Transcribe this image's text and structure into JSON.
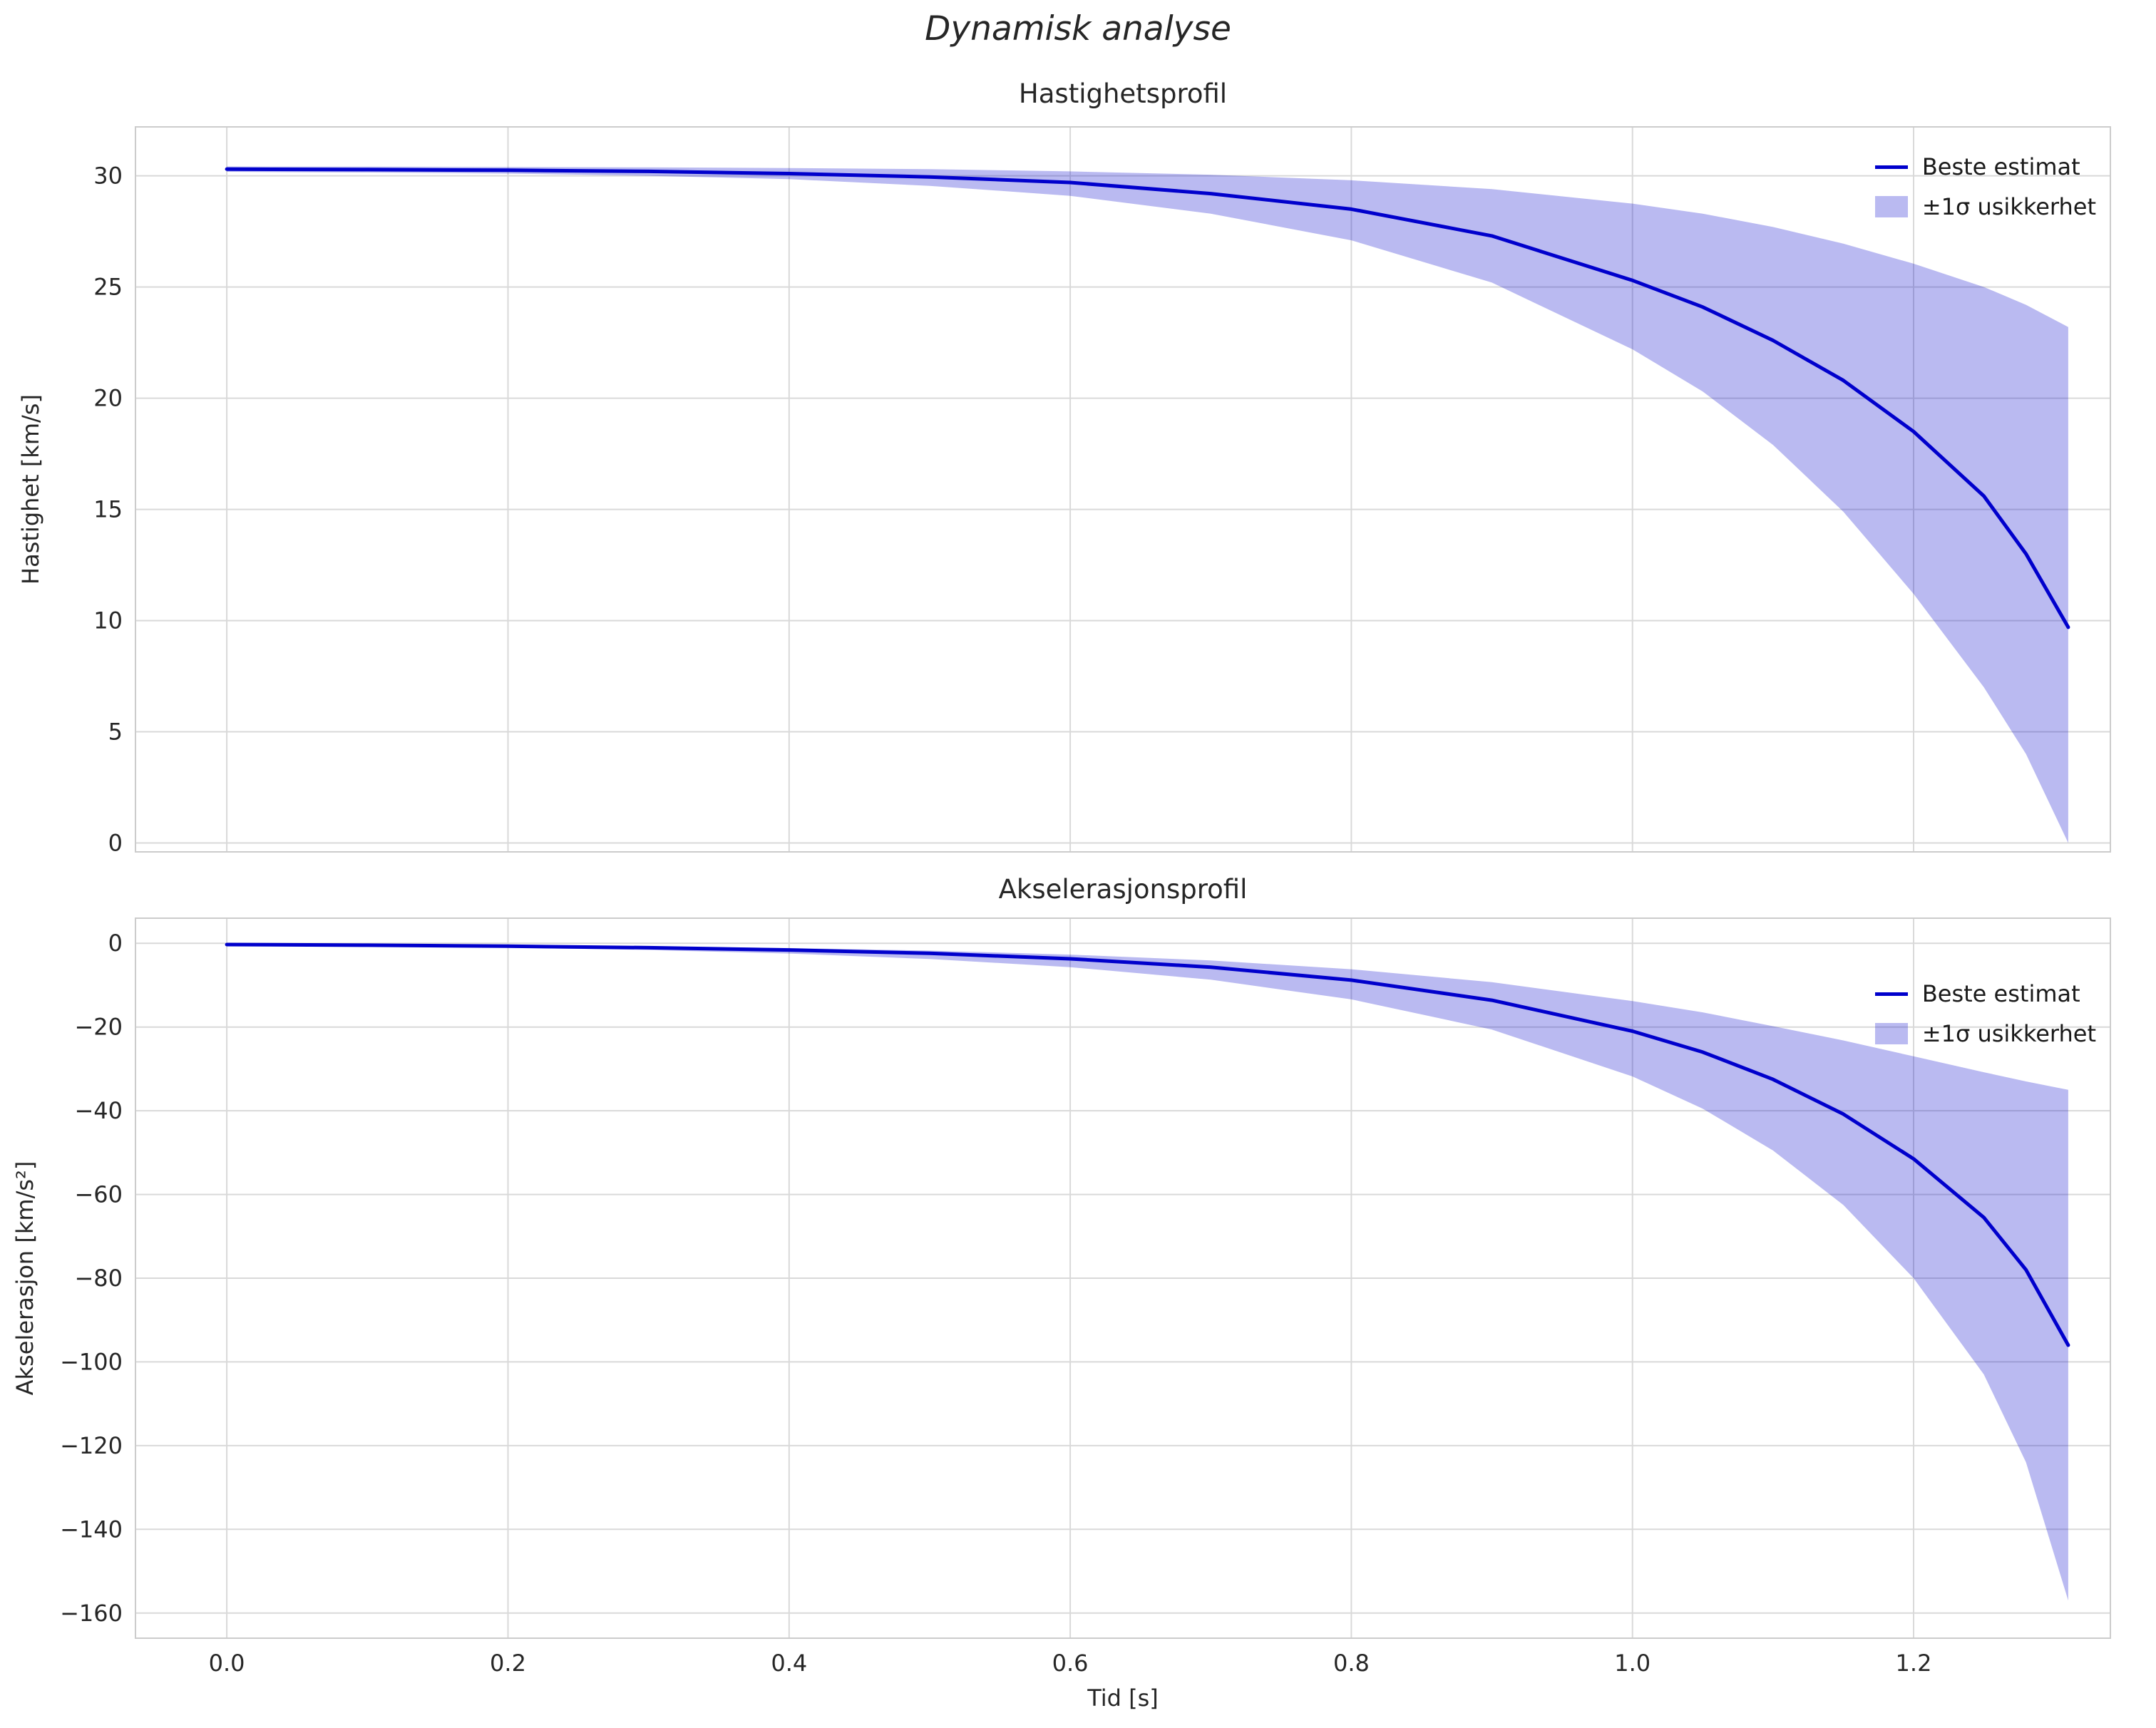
{
  "figure": {
    "suptitle": "Dynamisk analyse",
    "xlabel": "Tid [s]"
  },
  "chart_data": [
    {
      "type": "line",
      "title": "Hastighetsprofil",
      "ylabel": "Hastighet [km/s]",
      "legend": [
        "Beste estimat",
        "±1σ usikkerhet"
      ],
      "legend_position": "upper right",
      "grid": true,
      "colors": {
        "line": "#0000cc",
        "band": "rgba(0,0,204,0.27)"
      },
      "xlim": [
        -0.065,
        1.34
      ],
      "ylim": [
        -0.4,
        32.2
      ],
      "xticks": [
        0.0,
        0.2,
        0.4,
        0.6,
        0.8,
        1.0,
        1.2
      ],
      "yticks": [
        0,
        5,
        10,
        15,
        20,
        25,
        30
      ],
      "x": [
        0,
        0.1,
        0.2,
        0.3,
        0.4,
        0.5,
        0.6,
        0.7,
        0.8,
        0.9,
        1.0,
        1.05,
        1.1,
        1.15,
        1.2,
        1.25,
        1.28,
        1.31
      ],
      "best": [
        30.3,
        30.28,
        30.25,
        30.2,
        30.1,
        29.95,
        29.7,
        29.2,
        28.5,
        27.3,
        25.3,
        24.1,
        22.6,
        20.8,
        18.5,
        15.6,
        13.0,
        9.7
      ],
      "upper": [
        30.42,
        30.41,
        30.4,
        30.38,
        30.35,
        30.3,
        30.2,
        30.05,
        29.8,
        29.4,
        28.75,
        28.3,
        27.7,
        26.95,
        26.05,
        25.0,
        24.2,
        23.2
      ],
      "lower": [
        30.18,
        30.15,
        30.1,
        30.0,
        29.85,
        29.55,
        29.1,
        28.3,
        27.1,
        25.2,
        22.2,
        20.3,
        17.9,
        14.9,
        11.2,
        7.0,
        4.0,
        0.0
      ]
    },
    {
      "type": "line",
      "title": "Akselerasjonsprofil",
      "ylabel": "Akselerasjon [km/s²]",
      "legend": [
        "Beste estimat",
        "±1σ usikkerhet"
      ],
      "legend_position": "upper right",
      "grid": true,
      "colors": {
        "line": "#0000cc",
        "band": "rgba(0,0,204,0.27)"
      },
      "xlim": [
        -0.065,
        1.34
      ],
      "ylim": [
        -166,
        6
      ],
      "xticks": [
        0.0,
        0.2,
        0.4,
        0.6,
        0.8,
        1.0,
        1.2
      ],
      "yticks": [
        0,
        -20,
        -40,
        -60,
        -80,
        -100,
        -120,
        -140,
        -160
      ],
      "x": [
        0,
        0.1,
        0.2,
        0.3,
        0.4,
        0.5,
        0.6,
        0.7,
        0.8,
        0.9,
        1.0,
        1.05,
        1.1,
        1.15,
        1.2,
        1.25,
        1.28,
        1.31
      ],
      "best": [
        -0.3,
        -0.45,
        -0.7,
        -1.05,
        -1.6,
        -2.4,
        -3.7,
        -5.7,
        -8.8,
        -13.6,
        -21.0,
        -26.0,
        -32.5,
        -40.8,
        -51.5,
        -65.5,
        -78.0,
        -96.0
      ],
      "upper": [
        -0.2,
        -0.31,
        -0.48,
        -0.74,
        -1.14,
        -1.75,
        -2.7,
        -4.1,
        -6.2,
        -9.3,
        -13.8,
        -16.5,
        -19.8,
        -23.2,
        -27.0,
        -30.8,
        -33.0,
        -35.0
      ],
      "lower": [
        -0.45,
        -0.68,
        -1.05,
        -1.6,
        -2.45,
        -3.75,
        -5.7,
        -8.7,
        -13.4,
        -20.6,
        -31.8,
        -39.5,
        -49.5,
        -62.5,
        -80.0,
        -103.0,
        -124.0,
        -157.0
      ]
    }
  ]
}
